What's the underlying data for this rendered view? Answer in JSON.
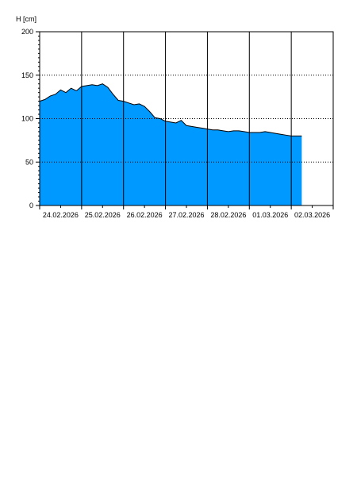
{
  "chart_data": {
    "type": "area",
    "y_label": "H [cm]",
    "categories": [
      null,
      null,
      null,
      null,
      "24.02.2026",
      null,
      null,
      null,
      null,
      null,
      null,
      null,
      "25.02.2026",
      null,
      null,
      null,
      null,
      null,
      null,
      null,
      "26.02.2026",
      null,
      null,
      null,
      null,
      null,
      null,
      null,
      "27.02.2026",
      null,
      null,
      null,
      null,
      null,
      null,
      null,
      "28.02.2026",
      null,
      null,
      null,
      null,
      null,
      null,
      null,
      "01.03.2026",
      null,
      null,
      null,
      null,
      null,
      null,
      null,
      "02.03.2026",
      null,
      null,
      null,
      null
    ],
    "values": [
      120,
      122,
      126,
      128,
      133,
      130,
      135,
      132,
      137,
      138,
      139,
      138,
      140,
      136,
      128,
      121,
      120,
      118,
      116,
      117,
      114,
      108,
      101,
      100,
      97,
      96,
      95,
      98,
      92,
      91,
      90,
      89,
      88,
      87,
      87,
      86,
      85,
      86,
      86,
      85,
      84,
      84,
      84,
      85,
      84,
      83,
      82,
      81,
      80,
      80,
      80,
      null,
      null,
      null,
      null,
      null,
      null
    ],
    "color": "#0099ff",
    "ylim": [
      0,
      200
    ],
    "yticks": [
      0,
      50,
      100,
      150,
      200
    ],
    "grid": true
  }
}
